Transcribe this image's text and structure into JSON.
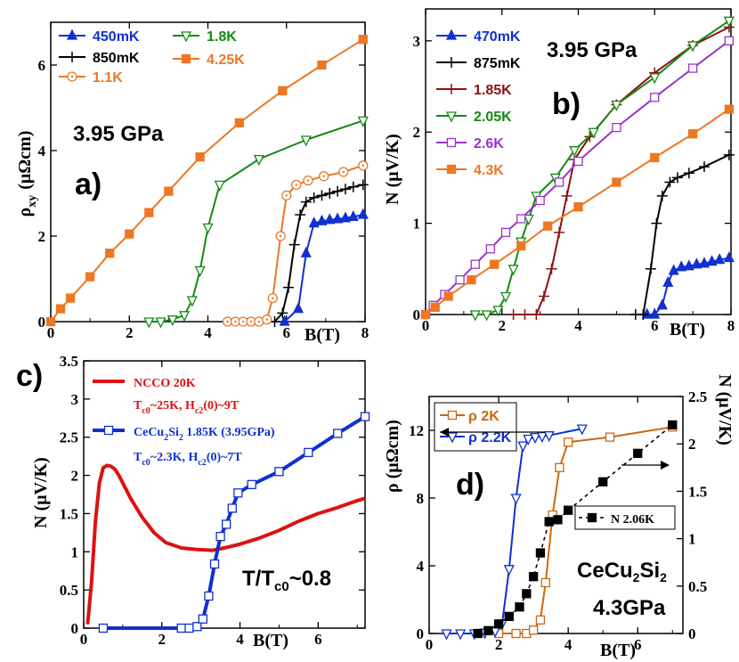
{
  "chart_data": [
    {
      "id": "a",
      "type": "line",
      "panel_label": "a)",
      "annotation": "3.95 GPa",
      "xlabel": "B(T)",
      "ylabel": "ρ_xy (μΩcm)",
      "ylabel_main": "ρ",
      "ylabel_sub": "xy",
      "ylabel_unit": "(μΩcm)",
      "xlim": [
        0,
        8
      ],
      "ylim": [
        0,
        7
      ],
      "xticks": [
        0,
        2,
        4,
        6,
        8
      ],
      "yticks": [
        0,
        2,
        4,
        6
      ],
      "series": [
        {
          "name": "450mK",
          "color": "#1030d0",
          "marker": "triangle-up",
          "filled": true,
          "x": [
            5.95,
            6.3,
            6.5,
            6.7,
            6.9,
            7.1,
            7.3,
            7.5,
            7.7,
            7.95
          ],
          "y": [
            0.0,
            0.3,
            1.6,
            2.3,
            2.35,
            2.38,
            2.4,
            2.42,
            2.45,
            2.5
          ]
        },
        {
          "name": "850mK",
          "color": "#000000",
          "marker": "plus",
          "filled": true,
          "x": [
            5.7,
            5.9,
            6.05,
            6.2,
            6.35,
            6.5,
            6.7,
            6.9,
            7.1,
            7.3,
            7.5,
            7.7,
            7.95
          ],
          "y": [
            0.0,
            0.2,
            0.8,
            1.8,
            2.5,
            2.8,
            2.9,
            2.95,
            3.0,
            3.05,
            3.1,
            3.15,
            3.2
          ]
        },
        {
          "name": "1.1K",
          "color": "#e8782a",
          "marker": "circle-dot",
          "filled": false,
          "x": [
            4.5,
            4.7,
            4.9,
            5.1,
            5.3,
            5.5,
            5.65,
            5.85,
            6.0,
            6.25,
            6.55,
            6.95,
            7.45,
            7.95
          ],
          "y": [
            0.0,
            0.0,
            0.0,
            0.0,
            0.0,
            0.05,
            0.55,
            2.0,
            2.95,
            3.2,
            3.3,
            3.4,
            3.5,
            3.65
          ]
        },
        {
          "name": "1.8K",
          "color": "#148a14",
          "marker": "triangle-down",
          "filled": false,
          "x": [
            2.5,
            2.8,
            3.1,
            3.4,
            3.6,
            3.8,
            4.0,
            4.3,
            5.3,
            6.5,
            7.95
          ],
          "y": [
            0.0,
            0.0,
            0.05,
            0.15,
            0.5,
            1.2,
            2.2,
            3.2,
            3.8,
            4.25,
            4.7
          ]
        },
        {
          "name": "4.25K",
          "color": "#ee7722",
          "marker": "square",
          "filled": true,
          "x": [
            0.0,
            0.25,
            0.5,
            1.0,
            1.5,
            2.0,
            2.5,
            3.0,
            3.8,
            4.8,
            5.9,
            6.9,
            7.95
          ],
          "y": [
            0.0,
            0.3,
            0.55,
            1.05,
            1.6,
            2.05,
            2.55,
            3.05,
            3.85,
            4.65,
            5.4,
            6.0,
            6.6
          ]
        }
      ]
    },
    {
      "id": "b",
      "type": "line",
      "panel_label": "b)",
      "annotation": "3.95 GPa",
      "xlabel": "B(T)",
      "ylabel": "N (μV/K)",
      "xlim": [
        0,
        8
      ],
      "ylim": [
        0,
        3.35
      ],
      "xticks": [
        0,
        2,
        4,
        6,
        8
      ],
      "yticks": [
        0,
        1,
        2,
        3
      ],
      "series": [
        {
          "name": "470mK",
          "color": "#1030d0",
          "marker": "triangle-up",
          "filled": true,
          "x": [
            5.8,
            6.0,
            6.2,
            6.35,
            6.5,
            6.7,
            6.9,
            7.1,
            7.3,
            7.5,
            7.7,
            7.95
          ],
          "y": [
            0.0,
            0.0,
            0.1,
            0.35,
            0.48,
            0.52,
            0.53,
            0.55,
            0.56,
            0.58,
            0.6,
            0.62
          ]
        },
        {
          "name": "875mK",
          "color": "#000000",
          "marker": "plus",
          "filled": true,
          "x": [
            5.5,
            5.7,
            5.9,
            6.05,
            6.2,
            6.4,
            6.6,
            6.9,
            7.3,
            7.95
          ],
          "y": [
            0.0,
            0.0,
            0.5,
            1.0,
            1.3,
            1.45,
            1.5,
            1.55,
            1.62,
            1.75
          ]
        },
        {
          "name": "1.85K",
          "color": "#8b1010",
          "marker": "plus",
          "filled": true,
          "x": [
            2.3,
            2.6,
            2.9,
            3.1,
            3.3,
            3.5,
            3.7,
            3.9,
            4.3,
            5.0,
            6.0,
            7.0,
            7.95
          ],
          "y": [
            0.0,
            0.0,
            0.0,
            0.2,
            0.5,
            0.9,
            1.3,
            1.7,
            1.95,
            2.3,
            2.65,
            2.95,
            3.15
          ]
        },
        {
          "name": "2.05K",
          "color": "#148a14",
          "marker": "triangle-down",
          "filled": false,
          "x": [
            1.3,
            1.6,
            1.9,
            2.1,
            2.3,
            2.5,
            2.7,
            2.9,
            3.4,
            3.9,
            4.4,
            5.0,
            6.0,
            7.0,
            7.95
          ],
          "y": [
            0.0,
            0.0,
            0.05,
            0.2,
            0.5,
            0.8,
            1.05,
            1.3,
            1.5,
            1.8,
            2.0,
            2.3,
            2.6,
            2.95,
            3.22
          ]
        },
        {
          "name": "2.6K",
          "color": "#9933cc",
          "marker": "square",
          "filled": false,
          "x": [
            0.0,
            0.2,
            0.5,
            0.9,
            1.3,
            1.7,
            2.1,
            2.5,
            3.0,
            3.5,
            4.0,
            5.0,
            6.0,
            7.0,
            7.95
          ],
          "y": [
            0.0,
            0.1,
            0.22,
            0.38,
            0.55,
            0.72,
            0.9,
            1.05,
            1.25,
            1.45,
            1.68,
            2.05,
            2.38,
            2.7,
            3.0
          ]
        },
        {
          "name": "4.3K",
          "color": "#ee7722",
          "marker": "square",
          "filled": true,
          "x": [
            0.0,
            0.25,
            0.6,
            1.2,
            1.8,
            2.5,
            3.2,
            4.0,
            5.0,
            6.0,
            7.0,
            7.95
          ],
          "y": [
            0.0,
            0.08,
            0.2,
            0.38,
            0.55,
            0.75,
            0.97,
            1.18,
            1.45,
            1.72,
            1.98,
            2.25
          ]
        }
      ]
    },
    {
      "id": "c",
      "type": "line",
      "panel_label": "c)",
      "annotation_main": "T/T",
      "annotation_sub": "c0",
      "annotation_tail": "~0.8",
      "xlabel": "B(T)",
      "ylabel": "N (μV/K)",
      "xlim": [
        0,
        7.2
      ],
      "ylim": [
        0,
        3.5
      ],
      "xticks": [
        0,
        2,
        4,
        6
      ],
      "yticks": [
        0,
        0.5,
        1,
        1.5,
        2,
        2.5,
        3,
        3.5
      ],
      "series": [
        {
          "name": "NCCO 20K",
          "color": "#dd1111",
          "marker": "none",
          "note_a": "T",
          "note_a_sub": "c0",
          "note_b": "~25K, H",
          "note_b_sub": "c2",
          "note_c": "(0)~9T",
          "x": [
            0.1,
            0.2,
            0.3,
            0.4,
            0.5,
            0.6,
            0.7,
            0.8,
            0.9,
            1.0,
            1.2,
            1.5,
            1.8,
            2.1,
            2.5,
            2.9,
            3.3,
            3.6,
            4.0,
            4.5,
            5.0,
            5.5,
            6.0,
            6.5,
            7.0,
            7.2
          ],
          "y": [
            0.05,
            0.6,
            1.4,
            1.9,
            2.1,
            2.13,
            2.12,
            2.08,
            2.0,
            1.9,
            1.7,
            1.45,
            1.25,
            1.12,
            1.05,
            1.03,
            1.02,
            1.05,
            1.1,
            1.18,
            1.28,
            1.4,
            1.5,
            1.58,
            1.67,
            1.7
          ]
        },
        {
          "name": "CeCu2Si2 1.85K (3.95GPa)",
          "color": "#1030d0",
          "marker": "square",
          "filled": false,
          "label_a": "CeCu",
          "label_a_sub": "2",
          "label_b": "Si",
          "label_b_sub": "2",
          "label_tail": " 1.85K (3.95GPa)",
          "note_a": "T",
          "note_a_sub": "c0",
          "note_b": "~2.3K, H",
          "note_b_sub": "c2",
          "note_c": "(0)~7T",
          "x": [
            0.5,
            2.5,
            2.7,
            2.9,
            3.05,
            3.2,
            3.35,
            3.5,
            3.65,
            3.8,
            3.95,
            4.3,
            5.0,
            5.75,
            6.5,
            7.2
          ],
          "y": [
            0.0,
            0.0,
            0.0,
            0.02,
            0.12,
            0.42,
            0.84,
            1.2,
            1.36,
            1.57,
            1.77,
            1.88,
            2.05,
            2.3,
            2.55,
            2.77
          ]
        }
      ]
    },
    {
      "id": "d",
      "type": "line",
      "panel_label": "d)",
      "material_a": "CeCu",
      "material_a_sub": "2",
      "material_b": "Si",
      "material_b_sub": "2",
      "pressure": "4.3GPa",
      "xlabel": "B(T)",
      "ylabel_left": "ρ (μΩcm)",
      "ylabel_right": "N (μV/K)",
      "xlim": [
        0,
        7.3
      ],
      "ylim_left": [
        0,
        14
      ],
      "ylim_right": [
        0,
        2.5
      ],
      "xticks": [
        0,
        2,
        4,
        6
      ],
      "yticks_left": [
        0,
        4,
        8,
        12
      ],
      "yticks_right": [
        0,
        0.5,
        1,
        1.5,
        2,
        2.5
      ],
      "series": [
        {
          "name": "ρ 2K",
          "color": "#cc6611",
          "marker": "square",
          "filled": false,
          "axis": "left",
          "x": [
            2.0,
            2.5,
            2.8,
            3.0,
            3.2,
            3.35,
            3.55,
            3.75,
            4.0,
            5.2,
            7.0
          ],
          "y": [
            0.0,
            0.0,
            0.0,
            0.2,
            0.8,
            3.0,
            7.0,
            9.8,
            11.3,
            11.6,
            12.2
          ]
        },
        {
          "name": "ρ 2.2K",
          "color": "#1030d0",
          "marker": "triangle-down",
          "filled": false,
          "axis": "left",
          "x": [
            0.5,
            0.9,
            1.3,
            1.6,
            1.9,
            2.1,
            2.3,
            2.5,
            2.7,
            2.85,
            3.05,
            3.25,
            3.45,
            4.4
          ],
          "y": [
            0.0,
            0.0,
            0.0,
            0.05,
            0.15,
            0.6,
            3.8,
            8.0,
            11.1,
            11.5,
            11.6,
            11.65,
            11.7,
            12.1
          ]
        },
        {
          "name": "N 2.06K",
          "color": "#000000",
          "marker": "square",
          "filled": true,
          "axis": "right",
          "x": [
            1.4,
            1.7,
            2.0,
            2.3,
            2.6,
            2.8,
            3.0,
            3.2,
            3.45,
            3.7,
            4.0,
            5.0,
            6.0,
            7.0
          ],
          "y": [
            0.0,
            0.03,
            0.1,
            0.18,
            0.28,
            0.42,
            0.6,
            0.85,
            1.18,
            1.2,
            1.3,
            1.6,
            1.9,
            2.2
          ]
        }
      ]
    }
  ]
}
